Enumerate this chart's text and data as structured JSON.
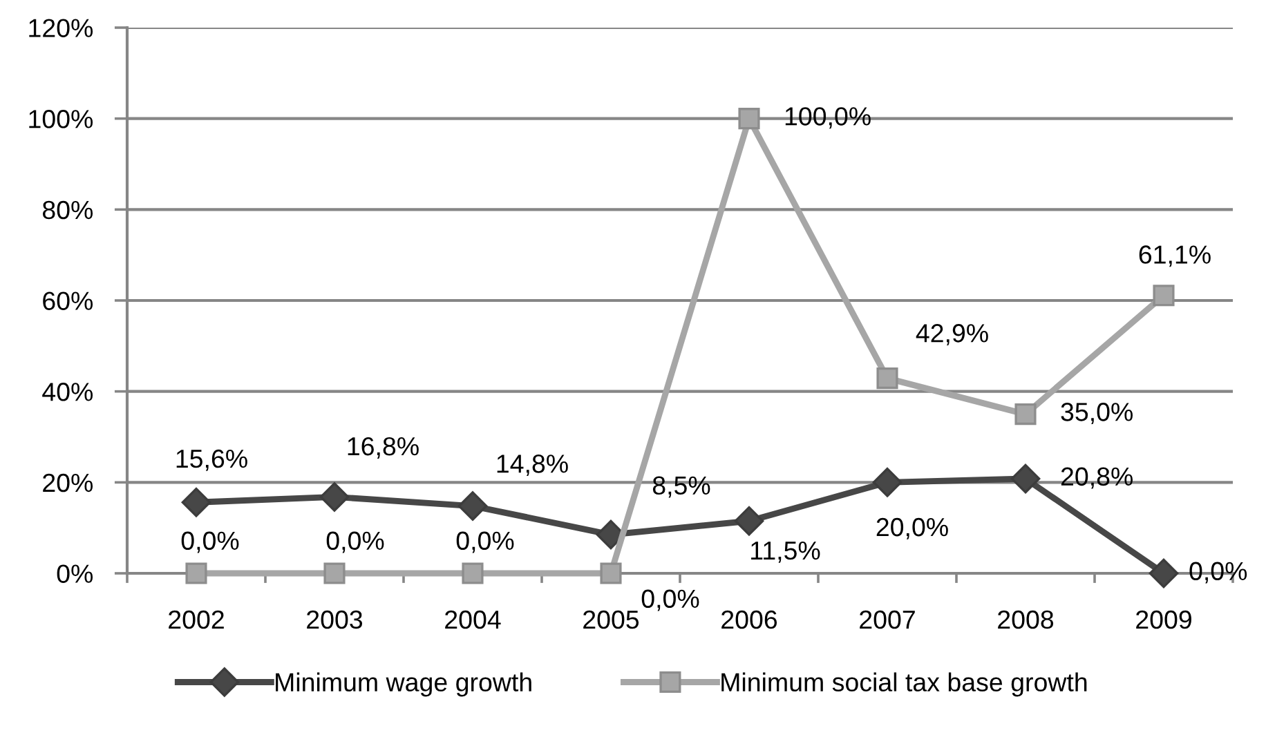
{
  "chart_data": {
    "type": "line",
    "categories": [
      "2002",
      "2003",
      "2004",
      "2005",
      "2006",
      "2007",
      "2008",
      "2009"
    ],
    "series": [
      {
        "name": "Minimum wage growth",
        "color": "#474747",
        "marker": "diamond",
        "values": [
          15.6,
          16.8,
          14.8,
          8.5,
          11.5,
          20.0,
          20.8,
          0.0
        ],
        "value_labels": [
          "15,6%",
          "16,8%",
          "14,8%",
          "8,5%",
          "11,5%",
          "20,0%",
          "20,8%",
          "0,0%"
        ]
      },
      {
        "name": "Minimum social tax base growth",
        "color": "#a6a6a6",
        "marker": "square",
        "values": [
          0.0,
          0.0,
          0.0,
          0.0,
          100.0,
          42.9,
          35.0,
          61.1
        ],
        "value_labels": [
          "0,0%",
          "0,0%",
          "0,0%",
          "0,0%",
          "100,0%",
          "42,9%",
          "35,0%",
          "61,1%"
        ]
      }
    ],
    "ylim": [
      0,
      120
    ],
    "yticks": [
      {
        "value": 0,
        "label": "0%"
      },
      {
        "value": 20,
        "label": "20%"
      },
      {
        "value": 40,
        "label": "40%"
      },
      {
        "value": 60,
        "label": "60%"
      },
      {
        "value": 80,
        "label": "80%"
      },
      {
        "value": 100,
        "label": "100%"
      },
      {
        "value": 120,
        "label": "120%"
      }
    ],
    "grid": "y",
    "legend": "bottom",
    "line_style": "solid"
  }
}
